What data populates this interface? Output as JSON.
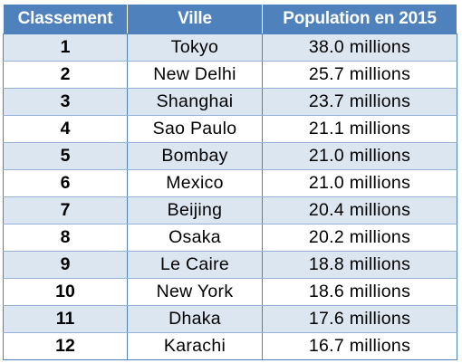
{
  "table": {
    "headers": [
      "Classement",
      "Ville",
      "Population en 2015"
    ],
    "rows": [
      {
        "rank": "1",
        "city": "Tokyo",
        "population": "38.0 millions"
      },
      {
        "rank": "2",
        "city": "New Delhi",
        "population": "25.7 millions"
      },
      {
        "rank": "3",
        "city": "Shanghai",
        "population": "23.7 millions"
      },
      {
        "rank": "4",
        "city": "Sao Paulo",
        "population": "21.1 millions"
      },
      {
        "rank": "5",
        "city": "Bombay",
        "population": "21.0 millions"
      },
      {
        "rank": "6",
        "city": "Mexico",
        "population": "21.0 millions"
      },
      {
        "rank": "7",
        "city": "Beijing",
        "population": "20.4 millions"
      },
      {
        "rank": "8",
        "city": "Osaka",
        "population": "20.2 millions"
      },
      {
        "rank": "9",
        "city": "Le Caire",
        "population": "18.8 millions"
      },
      {
        "rank": "10",
        "city": "New York",
        "population": "18.6 millions"
      },
      {
        "rank": "11",
        "city": "Dhaka",
        "population": "17.6 millions"
      },
      {
        "rank": "12",
        "city": "Karachi",
        "population": "16.7 millions"
      }
    ]
  },
  "colors": {
    "header_background": "#4f81bd",
    "header_text": "#ffffff",
    "band_row": "#dce6f1",
    "plain_row": "#ffffff",
    "border": "#95b3d7"
  }
}
